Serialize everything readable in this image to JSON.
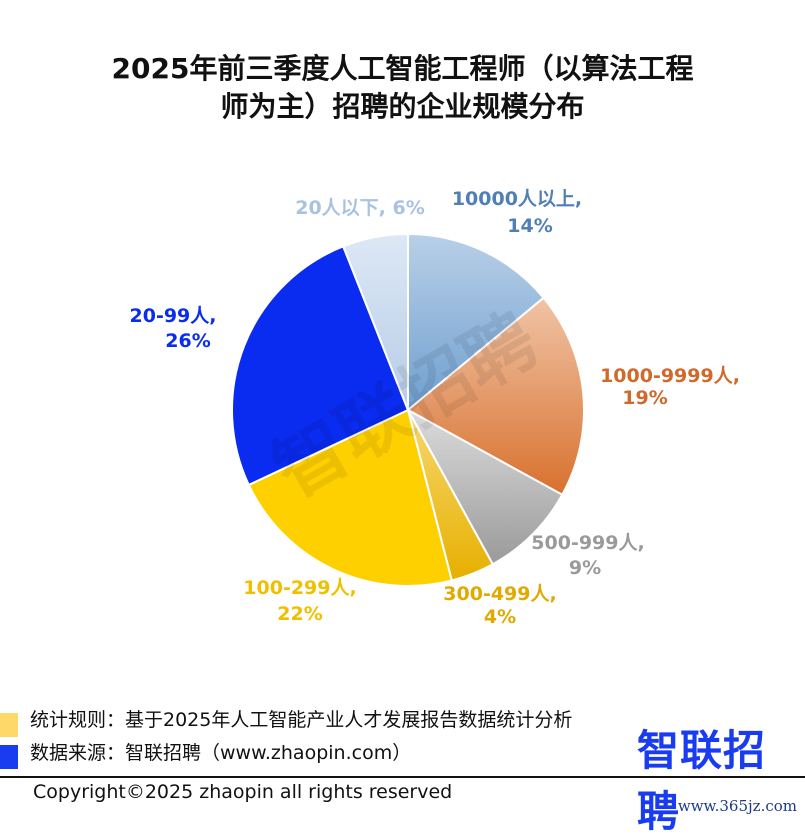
{
  "chart_data": {
    "type": "pie",
    "title": "2025年前三季度人工智能工程师（以算法工程师为主）招聘的企业规模分布",
    "title_lines": [
      "2025年前三季度人工智能工程师（以算法工程",
      "师为主）招聘的企业规模分布"
    ],
    "start": "top, clockwise",
    "slices": [
      {
        "label": "10000人以上,",
        "pct_text": "14%",
        "value": 14,
        "color": "#6f9fcf",
        "light": "#b9d0e8",
        "text_color": "#4f7fb5"
      },
      {
        "label": "1000-9999人,",
        "pct_text": "19%",
        "value": 19,
        "color": "#d8712e",
        "light": "#f0c4a6",
        "text_color": "#d0692a"
      },
      {
        "label": "500-999人,",
        "pct_text": "9%",
        "value": 9,
        "color": "#9a9a9a",
        "light": "#dcdcdc",
        "text_color": "#9a9a9a"
      },
      {
        "label": "300-499人,",
        "pct_text": "4%",
        "value": 4,
        "color": "#e6b000",
        "light": "#f8d870",
        "text_color": "#e0aa00"
      },
      {
        "label": "100-299人,",
        "pct_text": "22%",
        "value": 22,
        "color": "#ffd000",
        "light": "#ffd000",
        "text_color": "#f0c000"
      },
      {
        "label": "20-99人,",
        "pct_text": "26%",
        "value": 26,
        "color": "#0a2cf0",
        "light": "#0a2cf0",
        "text_color": "#0a2cf0"
      },
      {
        "label": "20人以下,",
        "pct_text": "6%",
        "value": 6,
        "color": "#b6cce8",
        "light": "#dde8f5",
        "text_color": "#a9c2e2"
      }
    ],
    "watermark": "智联招聘"
  },
  "legend": [
    {
      "text": "统计规则：基于2025年人工智能产业人才发展报告数据统计分析",
      "color": "#ffd86a"
    },
    {
      "text": "数据来源：智联招聘（www.zhaopin.com）",
      "color": "#1a3cf0"
    }
  ],
  "logo": "智联招聘",
  "copyright": "Copyright©2025 zhaopin all rights reserved",
  "site_watermark": "www.365jz.com"
}
